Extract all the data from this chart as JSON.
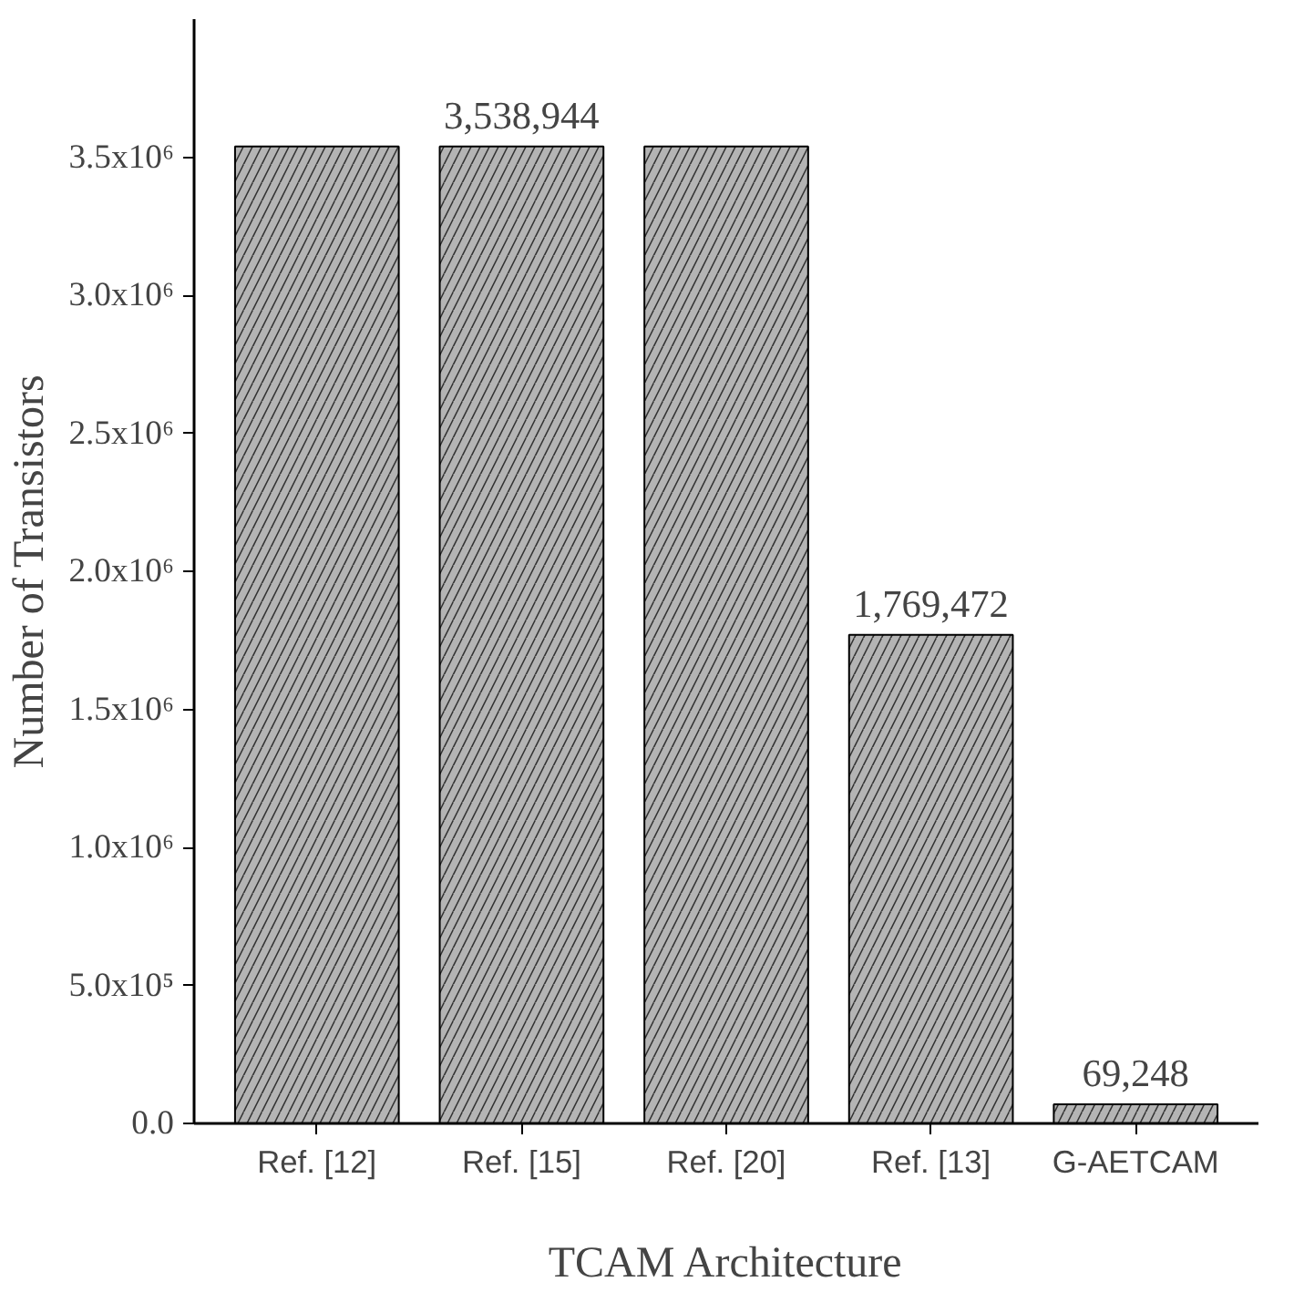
{
  "chart_data": {
    "type": "bar",
    "xlabel": "TCAM Architecture",
    "ylabel": "Number of Transistors",
    "categories": [
      "Ref. [12]",
      "Ref. [15]",
      "Ref. [20]",
      "Ref. [13]",
      "G-AETCAM"
    ],
    "values": [
      3538944,
      3538944,
      3538944,
      1769472,
      69248
    ],
    "value_labels": [
      null,
      "3,538,944",
      null,
      "1,769,472",
      "69,248"
    ],
    "color": "#b4b4b4",
    "ylim": [
      0,
      4000000
    ],
    "yticks": [
      {
        "value": 0,
        "label": "0.0"
      },
      {
        "value": 500000,
        "label": "5.0x10⁵"
      },
      {
        "value": 1000000,
        "label": "1.0x10⁶"
      },
      {
        "value": 1500000,
        "label": "1.5x10⁶"
      },
      {
        "value": 2000000,
        "label": "2.0x10⁶"
      },
      {
        "value": 2500000,
        "label": "2.5x10⁶"
      },
      {
        "value": 3000000,
        "label": "3.0x10⁶"
      },
      {
        "value": 3500000,
        "label": "3.5x10⁶"
      }
    ],
    "grid": false
  }
}
